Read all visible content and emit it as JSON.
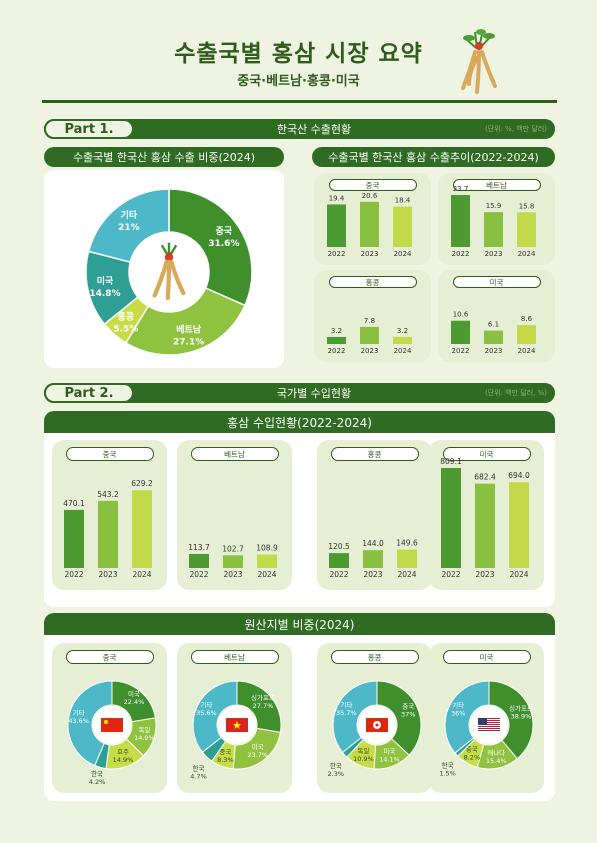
{
  "header": {
    "title": "수출국별 홍삼 시장 요약",
    "subtitle": "중국·베트남·홍콩·미국"
  },
  "part1": {
    "label": "Part 1.",
    "title": "한국산 수출현황",
    "unit": "(단위: %, 백만 달러)"
  },
  "part2": {
    "label": "Part 2.",
    "title": "국가별 수입현황",
    "unit": "(단위: 백만 달러, %)"
  },
  "colors": {
    "china": "#3f8f2d",
    "vietnam": "#8fc23f",
    "hongkong": "#c7dc46",
    "usa": "#2f9e95",
    "other": "#4db8c8",
    "dark": "#2f6b22",
    "bar2022": "#4d9a32",
    "bar2023": "#8ac040",
    "bar2024": "#c3d94a"
  },
  "chart_data": [
    {
      "type": "pie",
      "title": "수출국별 한국산 홍삼 수출 비중(2024)",
      "slices": [
        {
          "name": "중국",
          "value": 31.6,
          "label": "31.6%"
        },
        {
          "name": "베트남",
          "value": 27.1,
          "label": "27.1%"
        },
        {
          "name": "홍콩",
          "value": 5.5,
          "label": "5.5%"
        },
        {
          "name": "미국",
          "value": 14.8,
          "label": "14.8%"
        },
        {
          "name": "기타",
          "value": 21,
          "label": "21%"
        }
      ]
    },
    {
      "type": "bar",
      "title": "수출국별 한국산 홍삼 수출추이(2022-2024)",
      "categories": [
        "2022",
        "2023",
        "2024"
      ],
      "panels": [
        {
          "name": "중국",
          "values": [
            19.4,
            20.6,
            18.4
          ]
        },
        {
          "name": "베트남",
          "values": [
            23.7,
            15.9,
            15.8
          ]
        },
        {
          "name": "홍콩",
          "values": [
            3.2,
            7.8,
            3.2
          ]
        },
        {
          "name": "미국",
          "values": [
            10.6,
            6.1,
            8.6
          ]
        }
      ]
    },
    {
      "type": "bar",
      "title": "홍삼 수입현황(2022-2024)",
      "categories": [
        "2022",
        "2023",
        "2024"
      ],
      "panels": [
        {
          "name": "중국",
          "values": [
            470.1,
            543.2,
            629.2
          ],
          "labels": [
            "470.1",
            "543.2",
            "629.2"
          ]
        },
        {
          "name": "베트남",
          "values": [
            113.7,
            102.7,
            108.9
          ],
          "labels": [
            "113.7",
            "102.7",
            "108.9"
          ]
        },
        {
          "name": "홍콩",
          "values": [
            120.5,
            144.0,
            149.6
          ],
          "labels": [
            "120.5",
            "144.0",
            "149.6"
          ]
        },
        {
          "name": "미국",
          "values": [
            809.1,
            682.4,
            694.0
          ],
          "labels": [
            "809.1",
            "682.4",
            "694.0"
          ]
        }
      ]
    },
    {
      "type": "pie",
      "title": "원산지별 비중(2024)",
      "panels": [
        {
          "name": "중국",
          "slices": [
            {
              "name": "미국",
              "value": 22.4,
              "label": "미국\n22.4%"
            },
            {
              "name": "독일",
              "value": 14.9,
              "label": "독일\n14.9%"
            },
            {
              "name": "호주",
              "value": 14.9,
              "label": "호주\n14.9%"
            },
            {
              "name": "한국",
              "value": 4.2,
              "label": "한국\n4.2%"
            },
            {
              "name": "기타",
              "value": 43.6,
              "label": "기타\n43.6%"
            }
          ]
        },
        {
          "name": "베트남",
          "slices": [
            {
              "name": "싱가포르",
              "value": 27.7,
              "label": "싱가포르\n27.7%"
            },
            {
              "name": "미국",
              "value": 23.7,
              "label": "미국\n23.7%"
            },
            {
              "name": "중국",
              "value": 8.3,
              "label": "중국\n8.3%"
            },
            {
              "name": "한국",
              "value": 4.7,
              "label": "한국\n4.7%"
            },
            {
              "name": "기타",
              "value": 35.6,
              "label": "기타\n35.6%"
            }
          ]
        },
        {
          "name": "홍콩",
          "slices": [
            {
              "name": "중국",
              "value": 37,
              "label": "중국\n37%"
            },
            {
              "name": "미국",
              "value": 14.1,
              "label": "미국\n14.1%"
            },
            {
              "name": "독일",
              "value": 10.9,
              "label": "독일\n10.9%"
            },
            {
              "name": "한국",
              "value": 2.3,
              "label": "한국\n2.3%"
            },
            {
              "name": "기타",
              "value": 35.7,
              "label": "기타\n35.7%"
            }
          ]
        },
        {
          "name": "미국",
          "slices": [
            {
              "name": "싱가포르",
              "value": 38.9,
              "label": "싱가포르\n38.9%"
            },
            {
              "name": "캐나다",
              "value": 15.4,
              "label": "캐나다\n15.4%"
            },
            {
              "name": "중국",
              "value": 8.2,
              "label": "중국\n8.2%"
            },
            {
              "name": "한국",
              "value": 1.5,
              "label": "한국\n1.5%"
            },
            {
              "name": "기타",
              "value": 36,
              "label": "기타\n36%"
            }
          ]
        }
      ]
    }
  ]
}
